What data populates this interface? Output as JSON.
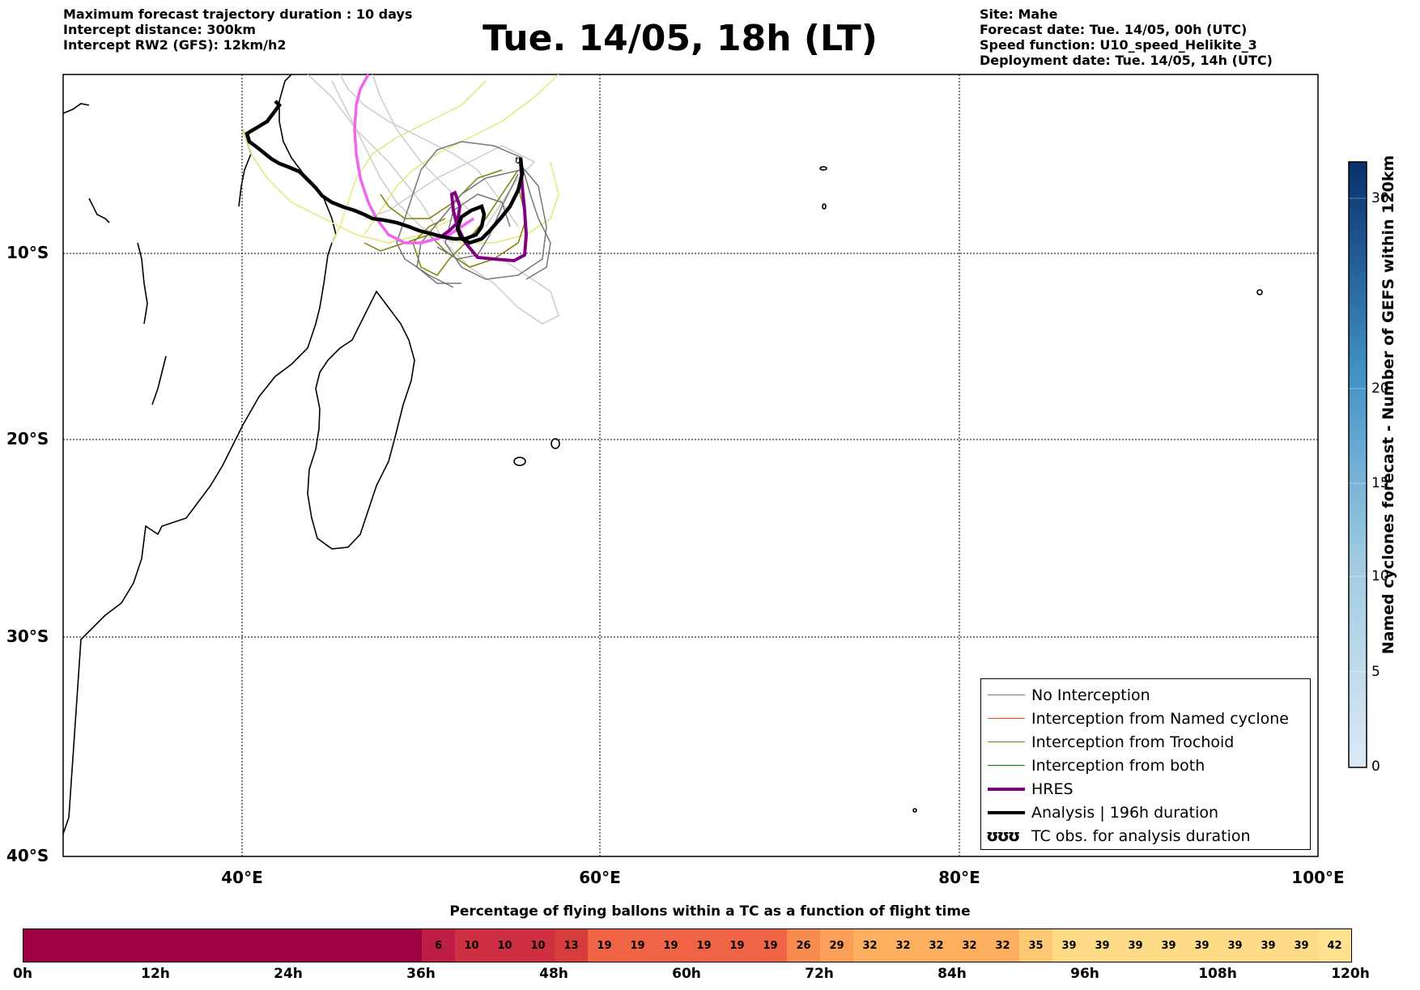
{
  "header": {
    "left_lines": [
      "Maximum forecast trajectory duration : 10 days",
      "Intercept distance: 300km",
      "Intercept RW2 (GFS):  12km/h2"
    ],
    "title": "Tue. 14/05, 18h (LT)",
    "right_lines": [
      "Site: Mahe",
      "Forecast date: Tue. 14/05, 00h (UTC)",
      "Speed function: U10_speed_Helikite_3",
      "Deployment date: Tue. 14/05, 14h (UTC)"
    ]
  },
  "map": {
    "extent": {
      "lon_min": 30,
      "lon_max": 100,
      "lat_min": -40,
      "lat_max": 0.5
    },
    "lat_labels": [
      "10°S",
      "20°S",
      "30°S",
      "40°S"
    ],
    "lon_labels": [
      "40°E",
      "60°E",
      "80°E",
      "100°E"
    ],
    "colors": {
      "no_interception": "#777777",
      "named_cyclone": "#ff4500",
      "trochoid": "#808000",
      "both": "#008000",
      "hres": "#800080",
      "analysis": "#000000",
      "light_ensemble": "#cccccc",
      "yellow_ensemble": "#e6e67a",
      "magenta_track": "#ee66ee"
    }
  },
  "legend": {
    "items": [
      {
        "label": "No Interception",
        "color": "#777777",
        "weight": "thin"
      },
      {
        "label": "Interception from Named cyclone",
        "color": "#ff4500",
        "weight": "thin"
      },
      {
        "label": "Interception from Trochoid",
        "color": "#808000",
        "weight": "thin"
      },
      {
        "label": "Interception from both",
        "color": "#008000",
        "weight": "thin"
      },
      {
        "label": "HRES",
        "color": "#800080",
        "weight": "thick"
      },
      {
        "label": "Analysis | 196h duration",
        "color": "#000000",
        "weight": "thick"
      },
      {
        "label": "TC obs. for analysis duration",
        "symbol": "ʊʊʊ"
      }
    ]
  },
  "colorbar": {
    "title": "Named cyclones forecast - Number of GEFS within 120km",
    "ticks": [
      "0",
      "5",
      "10",
      "15",
      "20",
      "30"
    ],
    "tick_values": [
      0,
      5,
      10,
      15,
      20,
      30
    ]
  },
  "bottom_bar": {
    "title": "Percentage of flying ballons within a TC as a function of flight time",
    "time_labels": [
      "0h",
      "12h",
      "24h",
      "36h",
      "48h",
      "60h",
      "72h",
      "84h",
      "96h",
      "108h",
      "120h"
    ],
    "first_block_hours": 36,
    "step_hours": 3,
    "values": [
      "6",
      "10",
      "10",
      "10",
      "13",
      "19",
      "19",
      "19",
      "19",
      "19",
      "19",
      "26",
      "29",
      "32",
      "32",
      "32",
      "32",
      "32",
      "35",
      "39",
      "39",
      "39",
      "39",
      "39",
      "39",
      "39",
      "39",
      "42"
    ]
  }
}
